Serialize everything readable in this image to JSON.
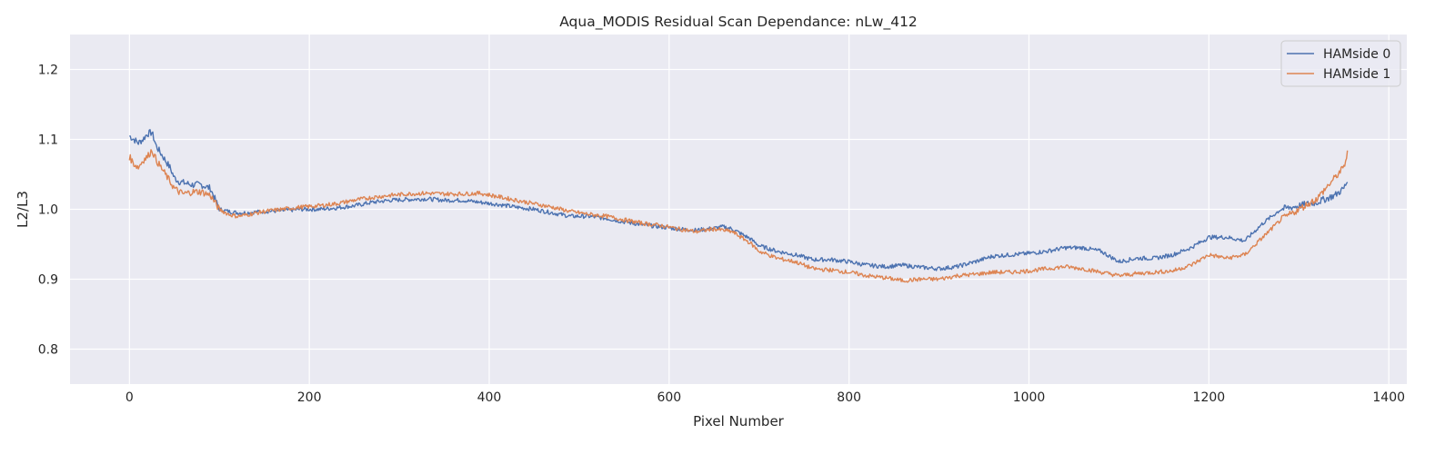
{
  "chart_data": {
    "type": "line",
    "title": "Aqua_MODIS Residual Scan Dependance: nLw_412",
    "xlabel": "Pixel Number",
    "ylabel": "L2/L3",
    "xlim": [
      -66,
      1420
    ],
    "ylim": [
      0.75,
      1.25
    ],
    "xticks": [
      0,
      200,
      400,
      600,
      800,
      1000,
      1200,
      1400
    ],
    "xtick_labels": [
      "0",
      "200",
      "400",
      "600",
      "800",
      "1000",
      "1200",
      "1400"
    ],
    "yticks": [
      0.8,
      0.9,
      1.0,
      1.1,
      1.2
    ],
    "ytick_labels": [
      "0.8",
      "0.9",
      "1.0",
      "1.1",
      "1.2"
    ],
    "grid": true,
    "legend_position": "top-right",
    "series": [
      {
        "name": "HAMside 0",
        "color": "#4c72b0",
        "x": [
          0,
          5,
          10,
          15,
          20,
          25,
          30,
          35,
          40,
          45,
          50,
          55,
          60,
          70,
          80,
          90,
          95,
          100,
          110,
          120,
          130,
          150,
          170,
          190,
          210,
          230,
          250,
          270,
          290,
          310,
          330,
          350,
          370,
          390,
          410,
          430,
          450,
          470,
          490,
          510,
          530,
          550,
          570,
          590,
          610,
          630,
          650,
          660,
          670,
          680,
          690,
          700,
          720,
          740,
          760,
          780,
          800,
          820,
          840,
          860,
          880,
          900,
          920,
          940,
          960,
          980,
          1000,
          1020,
          1040,
          1060,
          1080,
          1100,
          1120,
          1140,
          1160,
          1180,
          1200,
          1220,
          1240,
          1260,
          1280,
          1300,
          1320,
          1330,
          1340,
          1350,
          1354
        ],
        "y": [
          1.105,
          1.1,
          1.095,
          1.1,
          1.108,
          1.11,
          1.09,
          1.08,
          1.07,
          1.06,
          1.045,
          1.04,
          1.038,
          1.035,
          1.035,
          1.03,
          1.015,
          1.0,
          0.997,
          0.995,
          0.995,
          0.997,
          0.998,
          1.0,
          1.0,
          1.002,
          1.005,
          1.01,
          1.013,
          1.014,
          1.015,
          1.013,
          1.013,
          1.01,
          1.007,
          1.003,
          1.0,
          0.995,
          0.99,
          0.99,
          0.987,
          0.982,
          0.978,
          0.975,
          0.972,
          0.97,
          0.973,
          0.975,
          0.972,
          0.965,
          0.958,
          0.948,
          0.94,
          0.935,
          0.928,
          0.928,
          0.925,
          0.92,
          0.918,
          0.92,
          0.917,
          0.915,
          0.918,
          0.925,
          0.933,
          0.935,
          0.937,
          0.94,
          0.945,
          0.945,
          0.94,
          0.925,
          0.93,
          0.93,
          0.935,
          0.945,
          0.96,
          0.96,
          0.955,
          0.98,
          1.0,
          1.005,
          1.01,
          1.015,
          1.02,
          1.03,
          1.04
        ]
      },
      {
        "name": "HAMside 1",
        "color": "#dd8452",
        "x": [
          0,
          5,
          10,
          15,
          20,
          25,
          30,
          35,
          40,
          45,
          50,
          55,
          60,
          70,
          80,
          90,
          95,
          100,
          110,
          120,
          130,
          150,
          170,
          190,
          210,
          230,
          250,
          270,
          290,
          310,
          330,
          350,
          370,
          390,
          410,
          430,
          450,
          470,
          490,
          510,
          530,
          550,
          570,
          590,
          610,
          630,
          650,
          660,
          670,
          680,
          690,
          700,
          720,
          740,
          760,
          780,
          800,
          820,
          840,
          860,
          880,
          900,
          920,
          940,
          960,
          980,
          1000,
          1020,
          1040,
          1060,
          1080,
          1100,
          1120,
          1140,
          1160,
          1180,
          1200,
          1220,
          1240,
          1260,
          1280,
          1300,
          1320,
          1330,
          1340,
          1350,
          1354
        ],
        "y": [
          1.075,
          1.065,
          1.06,
          1.07,
          1.075,
          1.085,
          1.07,
          1.06,
          1.05,
          1.04,
          1.03,
          1.025,
          1.022,
          1.025,
          1.025,
          1.02,
          1.01,
          1.0,
          0.993,
          0.99,
          0.992,
          0.997,
          1.0,
          1.003,
          1.005,
          1.008,
          1.013,
          1.017,
          1.02,
          1.022,
          1.023,
          1.022,
          1.022,
          1.023,
          1.018,
          1.013,
          1.008,
          1.003,
          0.997,
          0.993,
          0.99,
          0.985,
          0.98,
          0.977,
          0.972,
          0.968,
          0.972,
          0.97,
          0.968,
          0.96,
          0.952,
          0.94,
          0.93,
          0.925,
          0.915,
          0.913,
          0.91,
          0.905,
          0.902,
          0.898,
          0.9,
          0.9,
          0.905,
          0.907,
          0.91,
          0.91,
          0.912,
          0.915,
          0.918,
          0.915,
          0.91,
          0.905,
          0.908,
          0.91,
          0.912,
          0.92,
          0.935,
          0.93,
          0.935,
          0.96,
          0.985,
          1.0,
          1.015,
          1.03,
          1.045,
          1.06,
          1.08
        ]
      }
    ]
  }
}
